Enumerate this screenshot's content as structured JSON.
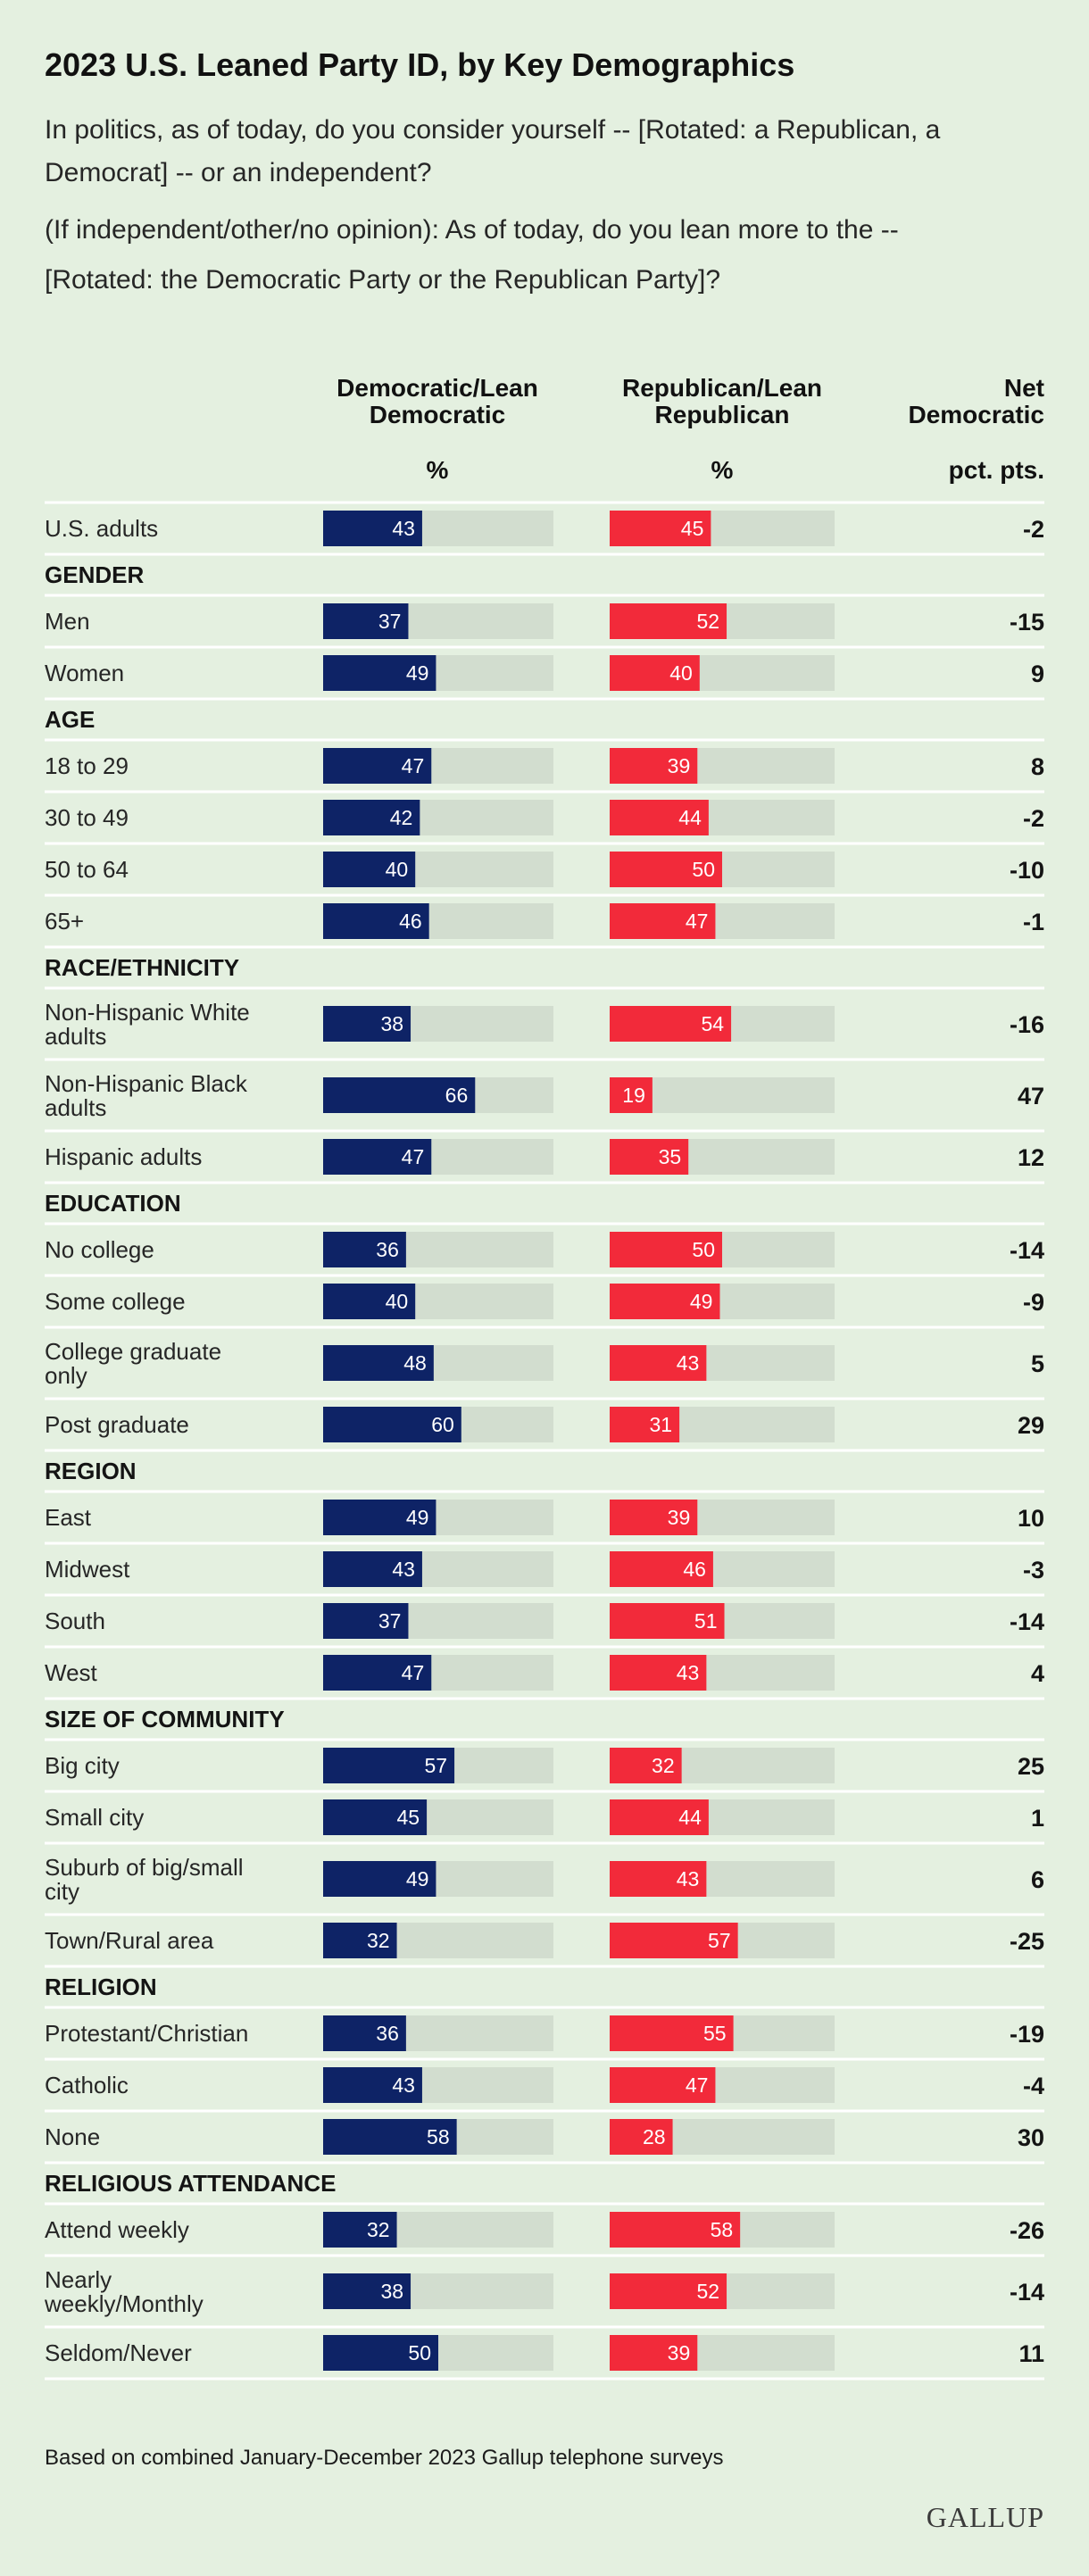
{
  "title": "2023 U.S. Leaned Party ID, by Key Demographics",
  "question": [
    "In politics, as of today, do you consider yourself -- [Rotated: a Republican, a",
    "Democrat] -- or an independent?",
    "(If independent/other/no opinion): As of today, do you lean more to the --",
    "[Rotated: the Democratic Party or the Republican Party]?"
  ],
  "columns": {
    "dem": {
      "line1": "Democratic/Lean",
      "line2": "Democratic",
      "unit": "%"
    },
    "rep": {
      "line1": "Republican/Lean",
      "line2": "Republican",
      "unit": "%"
    },
    "net": {
      "line1": "Net",
      "line2": "Democratic",
      "unit": "pct. pts."
    }
  },
  "colors": {
    "dem": "#0e2366",
    "rep": "#f22a3a",
    "track": "#d2ddcf",
    "divider": "#ffffff",
    "background": "#e4f0e0"
  },
  "chart_data": {
    "type": "bar",
    "title": "2023 U.S. Leaned Party ID, by Key Demographics",
    "series_names": [
      "Democratic/Lean Democratic",
      "Republican/Lean Republican",
      "Net Democratic"
    ],
    "xlim": [
      0,
      100
    ],
    "rows": [
      {
        "kind": "item",
        "label": [
          "U.S. adults"
        ],
        "dem": 43,
        "rep": 45,
        "net": "-2"
      },
      {
        "kind": "header",
        "label": "GENDER"
      },
      {
        "kind": "item",
        "label": [
          "Men"
        ],
        "dem": 37,
        "rep": 52,
        "net": "-15"
      },
      {
        "kind": "item",
        "label": [
          "Women"
        ],
        "dem": 49,
        "rep": 40,
        "net": "9"
      },
      {
        "kind": "header",
        "label": "AGE"
      },
      {
        "kind": "item",
        "label": [
          "18 to 29"
        ],
        "dem": 47,
        "rep": 39,
        "net": "8"
      },
      {
        "kind": "item",
        "label": [
          "30 to 49"
        ],
        "dem": 42,
        "rep": 44,
        "net": "-2"
      },
      {
        "kind": "item",
        "label": [
          "50 to 64"
        ],
        "dem": 40,
        "rep": 50,
        "net": "-10"
      },
      {
        "kind": "item",
        "label": [
          "65+"
        ],
        "dem": 46,
        "rep": 47,
        "net": "-1"
      },
      {
        "kind": "header",
        "label": "RACE/ETHNICITY"
      },
      {
        "kind": "item",
        "label": [
          "Non-Hispanic White",
          "adults"
        ],
        "dem": 38,
        "rep": 54,
        "net": "-16"
      },
      {
        "kind": "item",
        "label": [
          "Non-Hispanic Black",
          "adults"
        ],
        "dem": 66,
        "rep": 19,
        "net": "47"
      },
      {
        "kind": "item",
        "label": [
          "Hispanic adults"
        ],
        "dem": 47,
        "rep": 35,
        "net": "12"
      },
      {
        "kind": "header",
        "label": "EDUCATION"
      },
      {
        "kind": "item",
        "label": [
          "No college"
        ],
        "dem": 36,
        "rep": 50,
        "net": "-14"
      },
      {
        "kind": "item",
        "label": [
          "Some college"
        ],
        "dem": 40,
        "rep": 49,
        "net": "-9"
      },
      {
        "kind": "item",
        "label": [
          "College graduate",
          "only"
        ],
        "dem": 48,
        "rep": 43,
        "net": "5"
      },
      {
        "kind": "item",
        "label": [
          "Post graduate"
        ],
        "dem": 60,
        "rep": 31,
        "net": "29"
      },
      {
        "kind": "header",
        "label": "REGION"
      },
      {
        "kind": "item",
        "label": [
          "East"
        ],
        "dem": 49,
        "rep": 39,
        "net": "10"
      },
      {
        "kind": "item",
        "label": [
          "Midwest"
        ],
        "dem": 43,
        "rep": 46,
        "net": "-3"
      },
      {
        "kind": "item",
        "label": [
          "South"
        ],
        "dem": 37,
        "rep": 51,
        "net": "-14"
      },
      {
        "kind": "item",
        "label": [
          "West"
        ],
        "dem": 47,
        "rep": 43,
        "net": "4"
      },
      {
        "kind": "header",
        "label": "SIZE OF COMMUNITY"
      },
      {
        "kind": "item",
        "label": [
          "Big city"
        ],
        "dem": 57,
        "rep": 32,
        "net": "25"
      },
      {
        "kind": "item",
        "label": [
          "Small city"
        ],
        "dem": 45,
        "rep": 44,
        "net": "1"
      },
      {
        "kind": "item",
        "label": [
          "Suburb of big/small",
          "city"
        ],
        "dem": 49,
        "rep": 43,
        "net": "6"
      },
      {
        "kind": "item",
        "label": [
          "Town/Rural area"
        ],
        "dem": 32,
        "rep": 57,
        "net": "-25"
      },
      {
        "kind": "header",
        "label": "RELIGION"
      },
      {
        "kind": "item",
        "label": [
          "Protestant/Christian"
        ],
        "dem": 36,
        "rep": 55,
        "net": "-19"
      },
      {
        "kind": "item",
        "label": [
          "Catholic"
        ],
        "dem": 43,
        "rep": 47,
        "net": "-4"
      },
      {
        "kind": "item",
        "label": [
          "None"
        ],
        "dem": 58,
        "rep": 28,
        "net": "30"
      },
      {
        "kind": "header",
        "label": "RELIGIOUS ATTENDANCE"
      },
      {
        "kind": "item",
        "label": [
          "Attend weekly"
        ],
        "dem": 32,
        "rep": 58,
        "net": "-26"
      },
      {
        "kind": "item",
        "label": [
          "Nearly",
          "weekly/Monthly"
        ],
        "dem": 38,
        "rep": 52,
        "net": "-14"
      },
      {
        "kind": "item",
        "label": [
          "Seldom/Never"
        ],
        "dem": 50,
        "rep": 39,
        "net": "11"
      }
    ]
  },
  "footnote": "Based on combined January-December 2023 Gallup telephone surveys",
  "brand": "GALLUP"
}
